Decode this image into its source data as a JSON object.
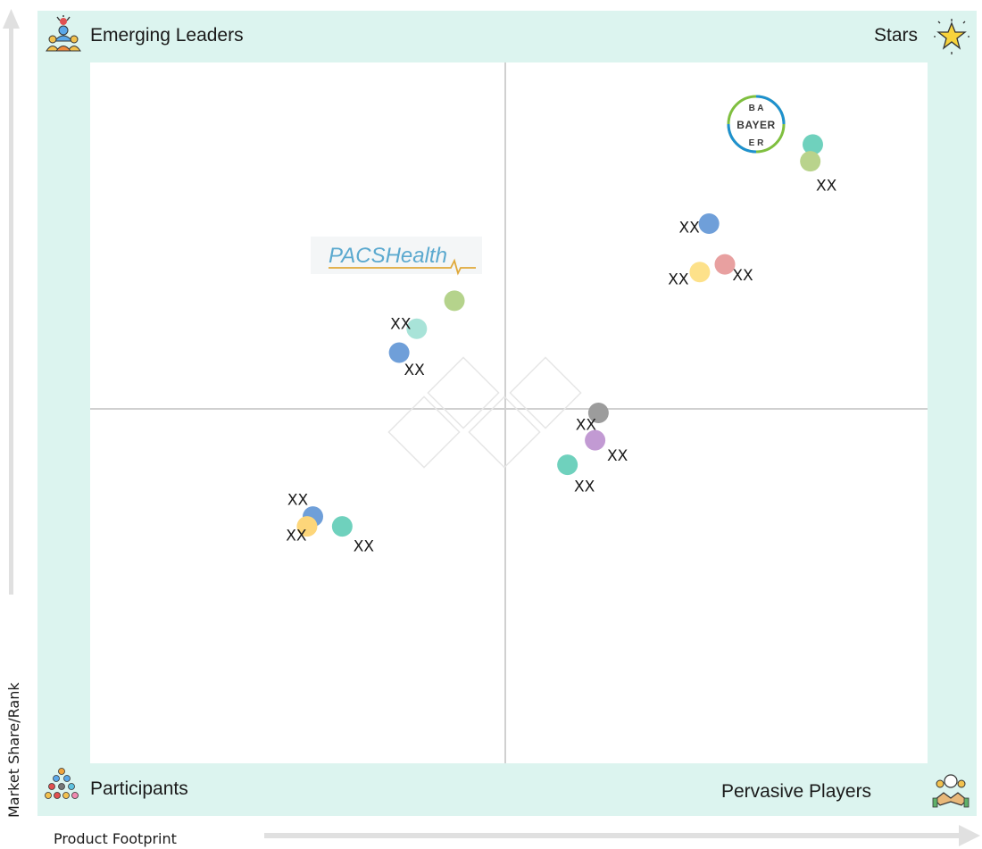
{
  "quadrants": {
    "top_left": "Emerging Leaders",
    "top_right": "Stars",
    "bottom_left": "Participants",
    "bottom_right": "Pervasive Players"
  },
  "icons": {
    "top_left": "emerging-leaders-icon",
    "top_right": "star-icon",
    "bottom_left": "participants-icon",
    "bottom_right": "handshake-icon"
  },
  "axes": {
    "ylabel": "Market Share/Rank",
    "xlabel": "Product Footprint"
  },
  "logos": {
    "bayer": "BAYER",
    "pacshealth": "PACSHealth"
  },
  "chart_data": {
    "type": "scatter",
    "xlabel": "Product Footprint",
    "ylabel": "Market Share/Rank",
    "xlim": [
      0,
      100
    ],
    "ylim": [
      0,
      100
    ],
    "dividers": {
      "x": 50,
      "y": 50
    },
    "points": [
      {
        "x": 86.3,
        "y": 88.3,
        "color": "#6fd1bd",
        "label": ""
      },
      {
        "x": 86.0,
        "y": 85.9,
        "color": "#b9d38c",
        "label": "XX"
      },
      {
        "x": 73.9,
        "y": 77.0,
        "color": "#6f9fd9",
        "label": "XX"
      },
      {
        "x": 75.8,
        "y": 71.2,
        "color": "#e8a0a0",
        "label": "XX"
      },
      {
        "x": 72.8,
        "y": 70.1,
        "color": "#fde18a",
        "label": "XX"
      },
      {
        "x": 43.5,
        "y": 66.0,
        "color": "#b5d38c",
        "label": ""
      },
      {
        "x": 39.0,
        "y": 62.0,
        "color": "#a8e3d8",
        "label": "XX"
      },
      {
        "x": 36.9,
        "y": 58.6,
        "color": "#6f9fd9",
        "label": "XX"
      },
      {
        "x": 60.7,
        "y": 50.0,
        "color": "#9c9c9c",
        "label": "XX"
      },
      {
        "x": 60.3,
        "y": 46.1,
        "color": "#c29ad3",
        "label": "XX"
      },
      {
        "x": 57.0,
        "y": 42.6,
        "color": "#6fd1bd",
        "label": "XX"
      },
      {
        "x": 26.6,
        "y": 35.2,
        "color": "#6f9fd9",
        "label": "XX"
      },
      {
        "x": 25.9,
        "y": 33.8,
        "color": "#fdd67a",
        "label": "XX"
      },
      {
        "x": 30.1,
        "y": 33.8,
        "color": "#6fd1bd",
        "label": "XX"
      }
    ]
  }
}
